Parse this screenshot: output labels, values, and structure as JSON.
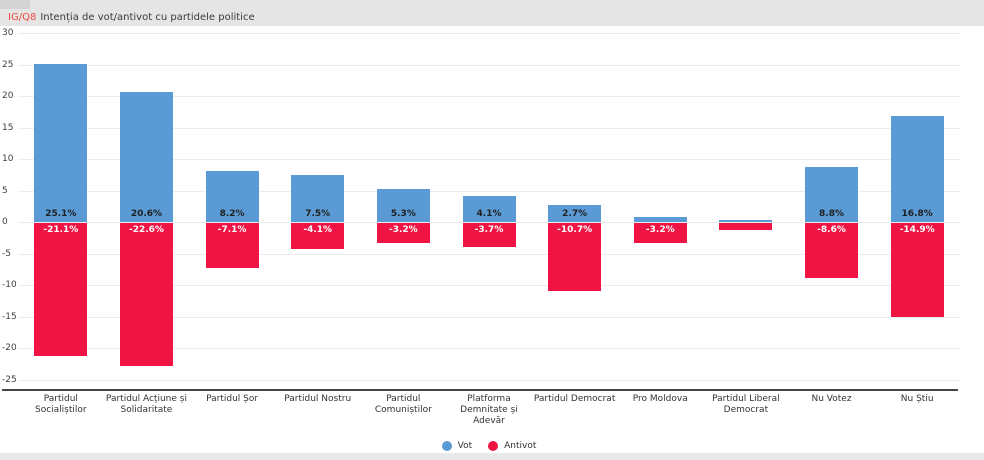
{
  "header": {
    "tag": "IG/Q8",
    "title": "Intenția de vot/antivot cu partidele politice",
    "tag_color": "#ef4b3f"
  },
  "legend": {
    "items": [
      {
        "label": "Vot",
        "color": "#5b9bd5"
      },
      {
        "label": "Antivot",
        "color": "#ef1443"
      }
    ]
  },
  "chart_data": {
    "type": "bar",
    "title": "IG/Q8 Intenția de vot/antivot cu partidele politice",
    "categories": [
      "Partidul Socialiștilor",
      "Partidul Acțiune și Solidaritate",
      "Partidul Șor",
      "Partidul Nostru",
      "Partidul Comuniștilor",
      "Platforma Demnitate și Adevăr",
      "Partidul Democrat",
      "Pro Moldova",
      "Partidul Liberal Democrat",
      "Nu Votez",
      "Nu Știu"
    ],
    "series": [
      {
        "name": "Vot",
        "color": "#5b9bd5",
        "values": [
          25.1,
          20.6,
          8.2,
          7.5,
          5.3,
          4.1,
          2.7,
          0.8,
          0.4,
          8.8,
          16.8
        ],
        "labels": [
          "25.1%",
          "20.6%",
          "8.2%",
          "7.5%",
          "5.3%",
          "4.1%",
          "2.7%",
          "",
          "",
          "8.8%",
          "16.8%"
        ]
      },
      {
        "name": "Antivot",
        "color": "#ef1443",
        "values": [
          -21.1,
          -22.6,
          -7.1,
          -4.1,
          -3.2,
          -3.7,
          -10.7,
          -3.2,
          -1.0,
          -8.6,
          -14.9
        ],
        "labels": [
          "-21.1%",
          "-22.6%",
          "-7.1%",
          "-4.1%",
          "-3.2%",
          "-3.7%",
          "-10.7%",
          "-3.2%",
          "",
          "-8.6%",
          "-14.9%"
        ]
      }
    ],
    "ylim": [
      -25,
      30
    ],
    "ytick_step": 5,
    "yticks": [
      30,
      25,
      20,
      15,
      10,
      5,
      0,
      -5,
      -10,
      -15,
      -20,
      -25
    ],
    "grid": true,
    "legend_position": "bottom"
  }
}
